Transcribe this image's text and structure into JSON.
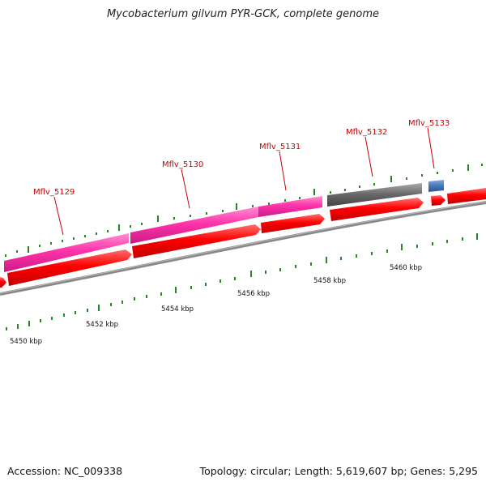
{
  "title": "Mycobacterium gilvum PYR-GCK, complete genome",
  "footer": {
    "accession": "Accession: NC_009338",
    "summary": "Topology: circular; Length: 5,619,607 bp; Genes: 5,295"
  },
  "scale_labels": [
    "5450 kbp",
    "5452 kbp",
    "5454 kbp",
    "5456 kbp",
    "5458 kbp",
    "5460 kbp"
  ],
  "gene_labels": [
    "Mflv_5129",
    "Mflv_5130",
    "Mflv_5131",
    "Mflv_5132",
    "Mflv_5133"
  ],
  "colors": {
    "cds": "#ff0000",
    "cog_pink": "#ff33aa",
    "cog_gray": "#666666",
    "cog_blue": "#4477bb",
    "backbone": "#888888",
    "tick": "#228822",
    "label": "#cc0000"
  }
}
